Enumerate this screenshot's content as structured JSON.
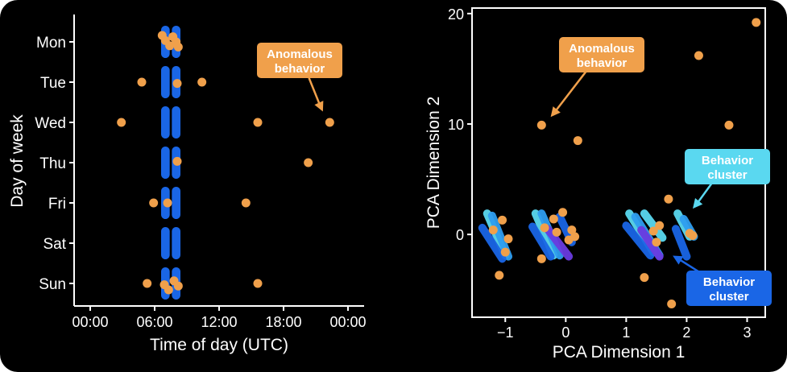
{
  "colors": {
    "background": "#000000",
    "foreground": "#ffffff",
    "anomaly": "#f0a04b",
    "cluster_blue": "#1a66e6",
    "cluster_cyan": "#5ad8f0",
    "cluster_purple": "#6a3be0"
  },
  "chart_data": [
    {
      "type": "scatter",
      "title": "",
      "xlabel": "Time of day (UTC)",
      "ylabel": "Day of week",
      "x_unit": "hours",
      "xlim": [
        -1.5,
        25.5
      ],
      "x_ticks": [
        0,
        6,
        12,
        18,
        24
      ],
      "x_tick_labels": [
        "00:00",
        "06:00",
        "12:00",
        "18:00",
        "00:00"
      ],
      "y_categories": [
        "Mon",
        "Tue",
        "Wed",
        "Thu",
        "Fri",
        "Sat",
        "Sun"
      ],
      "grid": false,
      "series": [
        {
          "color": "#1a66e6",
          "role": "normal",
          "stripes": [
            {
              "day": "Mon",
              "from": 6.6,
              "to": 7.4
            },
            {
              "day": "Mon",
              "from": 7.6,
              "to": 8.4
            },
            {
              "day": "Tue",
              "from": 6.6,
              "to": 7.4
            },
            {
              "day": "Tue",
              "from": 7.6,
              "to": 8.4
            },
            {
              "day": "Wed",
              "from": 6.6,
              "to": 7.4
            },
            {
              "day": "Wed",
              "from": 7.6,
              "to": 8.4
            },
            {
              "day": "Thu",
              "from": 6.6,
              "to": 7.4
            },
            {
              "day": "Thu",
              "from": 7.6,
              "to": 8.4
            },
            {
              "day": "Fri",
              "from": 6.6,
              "to": 7.4
            },
            {
              "day": "Fri",
              "from": 7.6,
              "to": 8.4
            },
            {
              "day": "Sat",
              "from": 6.6,
              "to": 7.4
            },
            {
              "day": "Sat",
              "from": 7.6,
              "to": 8.4
            },
            {
              "day": "Sun",
              "from": 6.6,
              "to": 7.4
            },
            {
              "day": "Sun",
              "from": 7.6,
              "to": 8.4
            }
          ]
        },
        {
          "color": "#f0a04b",
          "role": "anomalous",
          "points": [
            {
              "day": "Mon",
              "x": 6.7
            },
            {
              "day": "Mon",
              "x": 7.0
            },
            {
              "day": "Mon",
              "x": 7.4
            },
            {
              "day": "Mon",
              "x": 7.7
            },
            {
              "day": "Mon",
              "x": 8.0
            },
            {
              "day": "Mon",
              "x": 8.2
            },
            {
              "day": "Tue",
              "x": 4.8
            },
            {
              "day": "Tue",
              "x": 8.1
            },
            {
              "day": "Tue",
              "x": 10.4
            },
            {
              "day": "Wed",
              "x": 2.9
            },
            {
              "day": "Wed",
              "x": 15.6
            },
            {
              "day": "Wed",
              "x": 22.3
            },
            {
              "day": "Thu",
              "x": 8.1
            },
            {
              "day": "Thu",
              "x": 20.3
            },
            {
              "day": "Fri",
              "x": 5.9
            },
            {
              "day": "Fri",
              "x": 7.2
            },
            {
              "day": "Fri",
              "x": 14.5
            },
            {
              "day": "Sun",
              "x": 5.3
            },
            {
              "day": "Sun",
              "x": 6.9
            },
            {
              "day": "Sun",
              "x": 7.3
            },
            {
              "day": "Sun",
              "x": 7.8
            },
            {
              "day": "Sun",
              "x": 8.2
            },
            {
              "day": "Sun",
              "x": 15.6
            }
          ]
        }
      ],
      "annotations": [
        {
          "text": "Anomalous behavior",
          "lines": [
            "Anomalous",
            "behavior"
          ],
          "points_to": {
            "day": "Wed",
            "x": 22.3
          },
          "color": "#f0a04b"
        }
      ]
    },
    {
      "type": "scatter",
      "title": "",
      "xlabel": "PCA Dimension 1",
      "ylabel": "PCA Dimension 2",
      "xlim": [
        -1.55,
        3.3
      ],
      "ylim": [
        -7.5,
        20.5
      ],
      "x_ticks": [
        -1,
        0,
        1,
        2,
        3
      ],
      "x_tick_labels": [
        "−1",
        "0",
        "1",
        "2",
        "3"
      ],
      "y_ticks": [
        0,
        10,
        20
      ],
      "y_tick_labels": [
        "0",
        "10",
        "20"
      ],
      "grid": false,
      "series": [
        {
          "role": "cluster",
          "streaks": [
            {
              "from": [
                -1.3,
                1.9
              ],
              "to": [
                -1.0,
                -1.9
              ],
              "color": "#5ad8f0"
            },
            {
              "from": [
                -1.22,
                1.7
              ],
              "to": [
                -0.95,
                -2.0
              ],
              "color": "#2f9ef0"
            },
            {
              "from": [
                -1.38,
                0.6
              ],
              "to": [
                -1.05,
                -2.2
              ],
              "color": "#1a66e6"
            },
            {
              "from": [
                -0.5,
                1.9
              ],
              "to": [
                -0.2,
                -1.9
              ],
              "color": "#5ad8f0"
            },
            {
              "from": [
                -0.4,
                1.9
              ],
              "to": [
                -0.1,
                -1.9
              ],
              "color": "#2f9ef0"
            },
            {
              "from": [
                -0.55,
                0.7
              ],
              "to": [
                -0.25,
                -2.0
              ],
              "color": "#1a66e6"
            },
            {
              "from": [
                -0.1,
                1.6
              ],
              "to": [
                0.1,
                -0.7
              ],
              "color": "#1a66e6"
            },
            {
              "from": [
                -0.3,
                0.5
              ],
              "to": [
                0.05,
                -2.0
              ],
              "color": "#6a3be0"
            },
            {
              "from": [
                1.05,
                1.9
              ],
              "to": [
                1.45,
                -1.6
              ],
              "color": "#5ad8f0"
            },
            {
              "from": [
                1.15,
                1.6
              ],
              "to": [
                1.55,
                -1.9
              ],
              "color": "#2f9ef0"
            },
            {
              "from": [
                1.0,
                0.8
              ],
              "to": [
                1.4,
                -1.9
              ],
              "color": "#1a66e6"
            },
            {
              "from": [
                1.3,
                1.9
              ],
              "to": [
                1.6,
                -0.3
              ],
              "color": "#5ad8f0"
            },
            {
              "from": [
                1.25,
                0.4
              ],
              "to": [
                1.55,
                -2.0
              ],
              "color": "#6a3be0"
            },
            {
              "from": [
                1.85,
                1.9
              ],
              "to": [
                2.05,
                -0.2
              ],
              "color": "#5ad8f0"
            },
            {
              "from": [
                1.82,
                0.5
              ],
              "to": [
                2.0,
                -2.0
              ],
              "color": "#1a66e6"
            },
            {
              "from": [
                1.95,
                1.4
              ],
              "to": [
                2.12,
                -0.2
              ],
              "color": "#2f9ef0"
            }
          ]
        },
        {
          "role": "anomalous",
          "color": "#f0a04b",
          "points": [
            {
              "x": -0.4,
              "y": 9.9
            },
            {
              "x": 0.2,
              "y": 8.5
            },
            {
              "x": 2.2,
              "y": 16.2
            },
            {
              "x": 2.7,
              "y": 9.9
            },
            {
              "x": 3.15,
              "y": 19.2
            },
            {
              "x": 1.7,
              "y": 3.2
            },
            {
              "x": -1.1,
              "y": -3.7
            },
            {
              "x": -0.4,
              "y": -2.2
            },
            {
              "x": 1.3,
              "y": -3.9
            },
            {
              "x": 1.75,
              "y": -6.3
            },
            {
              "x": 2.25,
              "y": -4.0
            },
            {
              "x": -1.2,
              "y": 0.4
            },
            {
              "x": -1.05,
              "y": 1.3
            },
            {
              "x": -0.95,
              "y": -0.4
            },
            {
              "x": -1.0,
              "y": -1.6
            },
            {
              "x": -0.35,
              "y": 0.6
            },
            {
              "x": -0.2,
              "y": 1.4
            },
            {
              "x": -0.15,
              "y": 0.2
            },
            {
              "x": -0.05,
              "y": 2.0
            },
            {
              "x": 0.1,
              "y": 0.4
            },
            {
              "x": 0.15,
              "y": -0.2
            },
            {
              "x": 0.05,
              "y": -0.5
            },
            {
              "x": 1.45,
              "y": 0.3
            },
            {
              "x": 1.5,
              "y": -0.7
            },
            {
              "x": 1.55,
              "y": 0.8
            },
            {
              "x": 2.05,
              "y": 0.1
            },
            {
              "x": 2.1,
              "y": -0.1
            }
          ]
        }
      ],
      "annotations": [
        {
          "text": "Anomalous behavior",
          "lines": [
            "Anomalous",
            "behavior"
          ],
          "points_to": {
            "x": -0.3,
            "y": 10.3
          },
          "color": "#f0a04b"
        },
        {
          "text": "Behavior cluster",
          "lines": [
            "Behavior",
            "cluster"
          ],
          "points_to": {
            "x": 2.05,
            "y": 2.0
          },
          "color": "#5ad8f0"
        },
        {
          "text": "Behavior cluster",
          "lines": [
            "Behavior",
            "cluster"
          ],
          "points_to": {
            "x": 1.7,
            "y": -1.7
          },
          "color": "#1a66e6"
        }
      ]
    }
  ]
}
